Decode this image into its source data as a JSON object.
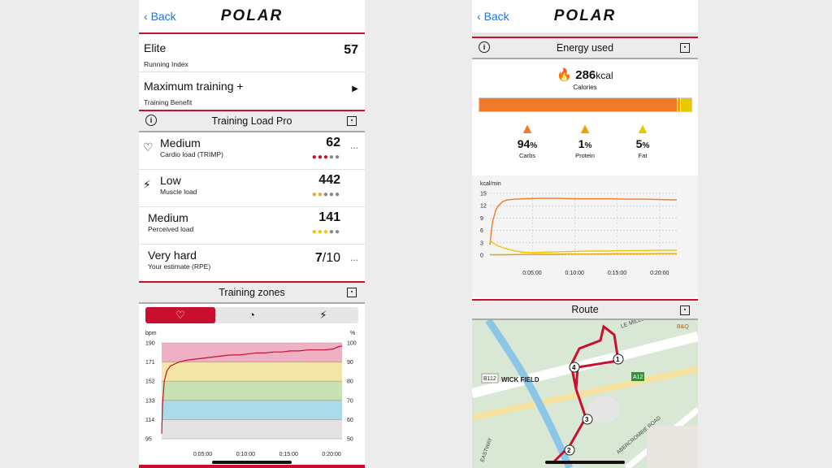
{
  "left": {
    "back_label": "Back",
    "logo_text": "POLAR",
    "running_index": {
      "title": "Elite",
      "subtitle": "Running Index",
      "value": "57"
    },
    "training_benefit": {
      "title": "Maximum training +",
      "subtitle": "Training Benefit",
      "arrow": "▶"
    },
    "training_load_section": "Training Load Pro",
    "loads": [
      {
        "icon": "heart-icon",
        "title": "Medium",
        "subtitle": "Cardio load (TRIMP)",
        "value": "62",
        "dots": [
          "#c8102e",
          "#c8102e",
          "#c8102e",
          "#888",
          "#888"
        ]
      },
      {
        "icon": "lightning-icon",
        "title": "Low",
        "subtitle": "Muscle load",
        "value": "442",
        "dots": [
          "#f2a33a",
          "#f2a33a",
          "#888",
          "#888",
          "#888"
        ]
      },
      {
        "icon": "",
        "title": "Medium",
        "subtitle": "Perceived load",
        "value": "141",
        "dots": [
          "#f5c400",
          "#f5c400",
          "#f5c400",
          "#888",
          "#888"
        ]
      },
      {
        "icon": "",
        "title": "Very hard",
        "subtitle": "Your estimate (RPE)",
        "value": "7",
        "value_suffix": "/10"
      }
    ],
    "zones_section": "Training zones",
    "zone_tabs": [
      "heart-icon",
      "gauge-icon",
      "lightning-icon"
    ],
    "more_label": "..."
  },
  "right": {
    "back_label": "Back",
    "logo_text": "POLAR",
    "energy_section": "Energy used",
    "calories_value": "286",
    "calories_unit": "kcal",
    "calories_label": "Calories",
    "macros": [
      {
        "pct": "94",
        "label": "Carbs",
        "color": "#f07a2a"
      },
      {
        "pct": "1",
        "label": "Protein",
        "color": "#e8a400"
      },
      {
        "pct": "5",
        "label": "Fat",
        "color": "#e8c800"
      }
    ],
    "route_section": "Route",
    "map_labels": [
      "WICK FIELD",
      "B112",
      "A12",
      "LE MILLS LANE",
      "B&Q",
      "EASTWAY",
      "ABERCROMBIE ROAD"
    ]
  },
  "chart_data": [
    {
      "type": "line",
      "title": "",
      "xlabel": "",
      "ylabel": "bpm",
      "y2label": "%",
      "x_ticks": [
        "0:05:00",
        "0:10:00",
        "0:15:00",
        "0:20:00"
      ],
      "yticks": [
        95,
        114,
        133,
        152,
        171,
        190
      ],
      "y2ticks": [
        50,
        60,
        70,
        80,
        90,
        100
      ],
      "ylim": [
        95,
        190
      ],
      "xlim_minutes": [
        0,
        21
      ],
      "zones": [
        {
          "from": 95,
          "to": 114,
          "color": "#e3e3e3"
        },
        {
          "from": 114,
          "to": 133,
          "color": "#a9dbe9"
        },
        {
          "from": 133,
          "to": 152,
          "color": "#c9e2b3"
        },
        {
          "from": 152,
          "to": 171,
          "color": "#f4e6a6"
        },
        {
          "from": 171,
          "to": 190,
          "color": "#f0b0c4"
        }
      ],
      "series": [
        {
          "color": "#c8102e",
          "x": [
            0,
            0.1,
            0.3,
            0.6,
            1,
            1.5,
            2,
            3,
            4,
            5,
            6,
            7,
            8,
            9,
            10,
            11,
            12,
            13,
            14,
            15,
            16,
            17,
            18,
            19,
            20,
            20.5,
            21
          ],
          "y": [
            100,
            130,
            152,
            162,
            167,
            169,
            171,
            173,
            174,
            175,
            176,
            177,
            178,
            178,
            179,
            180,
            180,
            181,
            181,
            182,
            182,
            183,
            183,
            183,
            184,
            186,
            187
          ]
        }
      ]
    },
    {
      "type": "line",
      "title": "",
      "xlabel": "",
      "ylabel": "kcal/min",
      "x_ticks": [
        "0:05:00",
        "0:10:00",
        "0:15:00",
        "0:20:00"
      ],
      "yticks": [
        0,
        3,
        6,
        9,
        12,
        15
      ],
      "ylim": [
        0,
        15
      ],
      "xlim_minutes": [
        0,
        22
      ],
      "grid": true,
      "series": [
        {
          "color": "#f07a2a",
          "x": [
            0,
            0.3,
            0.7,
            1,
            1.5,
            2,
            3,
            4,
            6,
            8,
            10,
            12,
            14,
            16,
            18,
            20,
            22
          ],
          "y": [
            2.5,
            8,
            11,
            12,
            13,
            13.4,
            13.6,
            13.7,
            13.8,
            13.8,
            13.7,
            13.7,
            13.7,
            13.6,
            13.6,
            13.5,
            13.4
          ]
        },
        {
          "color": "#f5c400",
          "x": [
            0,
            0.5,
            1,
            2,
            3,
            4,
            5,
            6,
            8,
            10,
            12,
            14,
            16,
            18,
            20,
            22
          ],
          "y": [
            3.5,
            2.8,
            2.2,
            1.5,
            1.0,
            0.7,
            0.6,
            0.7,
            0.8,
            0.9,
            1.0,
            1.0,
            1.1,
            1.1,
            1.2,
            1.2
          ]
        },
        {
          "color": "#e8a400",
          "x": [
            0,
            2,
            4,
            6,
            8,
            10,
            12,
            14,
            16,
            18,
            20,
            22
          ],
          "y": [
            0.1,
            0.1,
            0.15,
            0.2,
            0.2,
            0.25,
            0.25,
            0.3,
            0.3,
            0.3,
            0.35,
            0.35
          ]
        }
      ]
    }
  ]
}
